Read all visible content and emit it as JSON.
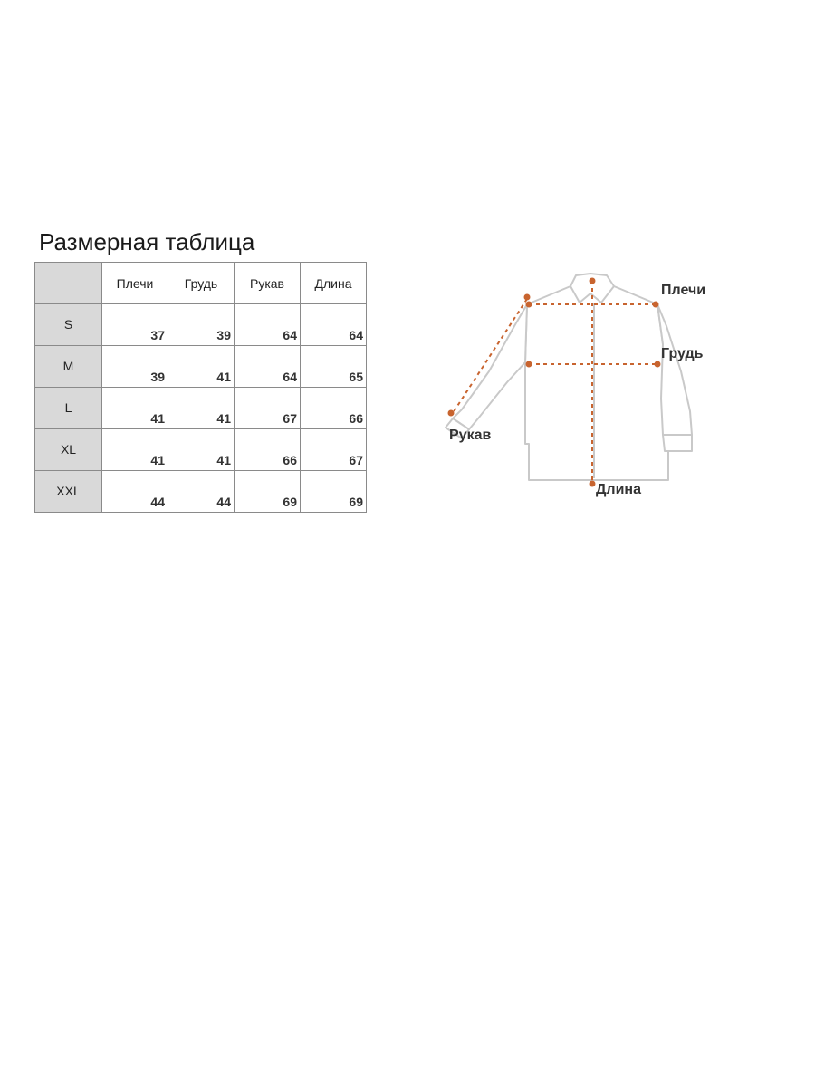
{
  "title": "Размерная таблица",
  "table": {
    "headers": [
      "",
      "Плечи",
      "Грудь",
      "Рукав",
      "Длина"
    ],
    "rows": [
      {
        "size": "S",
        "values": [
          "37",
          "39",
          "64",
          "64"
        ]
      },
      {
        "size": "M",
        "values": [
          "39",
          "41",
          "64",
          "65"
        ]
      },
      {
        "size": "L",
        "values": [
          "41",
          "41",
          "67",
          "66"
        ]
      },
      {
        "size": "XL",
        "values": [
          "41",
          "41",
          "66",
          "67"
        ]
      },
      {
        "size": "XXL",
        "values": [
          "44",
          "44",
          "69",
          "69"
        ]
      }
    ]
  },
  "diagram": {
    "labels": {
      "shoulders": "Плечи",
      "chest": "Грудь",
      "sleeve": "Рукав",
      "length": "Длина"
    },
    "marker_color": "#c8642f",
    "outline_color": "#c9c9c9"
  }
}
